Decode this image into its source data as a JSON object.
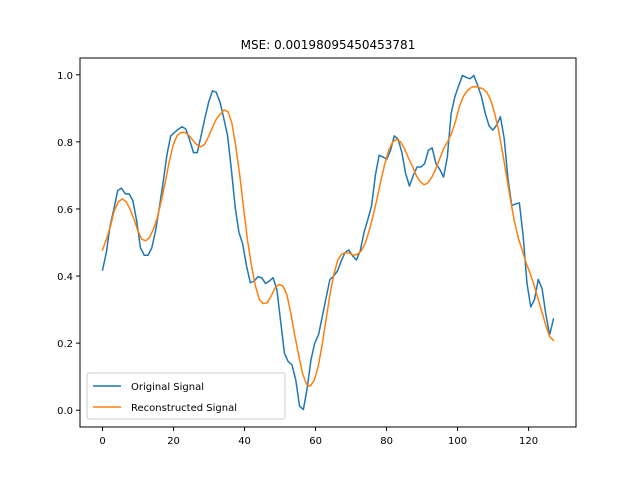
{
  "chart_data": {
    "type": "line",
    "title": "MSE: 0.00198095450453781",
    "xlabel": "",
    "ylabel": "",
    "xlim": [
      -6.35,
      133.35
    ],
    "ylim": [
      -0.05,
      1.05
    ],
    "xticks": [
      0,
      20,
      40,
      60,
      80,
      100,
      120
    ],
    "yticks": [
      0.0,
      0.2,
      0.4,
      0.6,
      0.8,
      1.0
    ],
    "ytick_labels": [
      "0.0",
      "0.2",
      "0.4",
      "0.6",
      "0.8",
      "1.0"
    ],
    "grid": false,
    "legend_position": "lower-left",
    "series": [
      {
        "name": "Original Signal",
        "color": "#1f77b4",
        "points": [
          [
            0,
            0.418
          ],
          [
            1,
            0.47
          ],
          [
            2,
            0.55
          ],
          [
            3,
            0.6
          ],
          [
            4,
            0.655
          ],
          [
            5,
            0.662
          ],
          [
            6,
            0.645
          ],
          [
            7,
            0.645
          ],
          [
            8,
            0.625
          ],
          [
            9,
            0.565
          ],
          [
            10,
            0.484
          ],
          [
            11,
            0.462
          ],
          [
            12,
            0.462
          ],
          [
            13,
            0.484
          ],
          [
            14,
            0.535
          ],
          [
            15,
            0.605
          ],
          [
            16,
            0.68
          ],
          [
            17,
            0.762
          ],
          [
            18,
            0.818
          ],
          [
            19,
            0.828
          ],
          [
            20,
            0.838
          ],
          [
            21,
            0.845
          ],
          [
            22,
            0.838
          ],
          [
            23,
            0.805
          ],
          [
            24,
            0.768
          ],
          [
            25,
            0.768
          ],
          [
            26,
            0.818
          ],
          [
            27,
            0.87
          ],
          [
            28,
            0.918
          ],
          [
            29,
            0.952
          ],
          [
            30,
            0.948
          ],
          [
            31,
            0.918
          ],
          [
            32,
            0.87
          ],
          [
            33,
            0.818
          ],
          [
            34,
            0.718
          ],
          [
            35,
            0.605
          ],
          [
            36,
            0.53
          ],
          [
            37,
            0.495
          ],
          [
            38,
            0.43
          ],
          [
            39,
            0.38
          ],
          [
            40,
            0.385
          ],
          [
            41,
            0.398
          ],
          [
            42,
            0.395
          ],
          [
            43,
            0.378
          ],
          [
            44,
            0.385
          ],
          [
            45,
            0.395
          ],
          [
            46,
            0.36
          ],
          [
            47,
            0.265
          ],
          [
            48,
            0.17
          ],
          [
            49,
            0.145
          ],
          [
            50,
            0.135
          ],
          [
            51,
            0.09
          ],
          [
            52,
            0.012
          ],
          [
            53,
            0.002
          ],
          [
            54,
            0.065
          ],
          [
            55,
            0.15
          ],
          [
            56,
            0.2
          ],
          [
            57,
            0.225
          ],
          [
            58,
            0.28
          ],
          [
            59,
            0.335
          ],
          [
            60,
            0.39
          ],
          [
            61,
            0.4
          ],
          [
            62,
            0.415
          ],
          [
            63,
            0.445
          ],
          [
            64,
            0.47
          ],
          [
            65,
            0.478
          ],
          [
            66,
            0.46
          ],
          [
            67,
            0.448
          ],
          [
            68,
            0.475
          ],
          [
            69,
            0.53
          ],
          [
            70,
            0.568
          ],
          [
            71,
            0.61
          ],
          [
            72,
            0.7
          ],
          [
            73,
            0.76
          ],
          [
            74,
            0.755
          ],
          [
            75,
            0.748
          ],
          [
            76,
            0.775
          ],
          [
            77,
            0.818
          ],
          [
            78,
            0.808
          ],
          [
            79,
            0.768
          ],
          [
            80,
            0.705
          ],
          [
            81,
            0.668
          ],
          [
            82,
            0.7
          ],
          [
            83,
            0.725
          ],
          [
            84,
            0.725
          ],
          [
            85,
            0.735
          ],
          [
            86,
            0.775
          ],
          [
            87,
            0.782
          ],
          [
            88,
            0.735
          ],
          [
            89,
            0.718
          ],
          [
            90,
            0.695
          ],
          [
            91,
            0.755
          ],
          [
            92,
            0.885
          ],
          [
            93,
            0.935
          ],
          [
            94,
            0.968
          ],
          [
            95,
            0.998
          ],
          [
            96,
            0.992
          ],
          [
            97,
            0.988
          ],
          [
            98,
            0.998
          ],
          [
            99,
            0.968
          ],
          [
            100,
            0.935
          ],
          [
            101,
            0.885
          ],
          [
            102,
            0.848
          ],
          [
            103,
            0.835
          ],
          [
            104,
            0.85
          ],
          [
            105,
            0.875
          ],
          [
            106,
            0.81
          ],
          [
            107,
            0.69
          ],
          [
            108,
            0.61
          ],
          [
            109,
            0.615
          ],
          [
            110,
            0.618
          ],
          [
            111,
            0.52
          ],
          [
            112,
            0.38
          ],
          [
            113,
            0.308
          ],
          [
            114,
            0.33
          ],
          [
            115,
            0.39
          ],
          [
            116,
            0.362
          ],
          [
            117,
            0.285
          ],
          [
            118,
            0.225
          ],
          [
            119,
            0.272
          ]
        ]
      },
      {
        "name": "Reconstructed Signal",
        "color": "#ff7f0e",
        "points": [
          [
            0,
            0.478
          ],
          [
            1,
            0.51
          ],
          [
            2,
            0.548
          ],
          [
            3,
            0.595
          ],
          [
            4,
            0.62
          ],
          [
            5,
            0.63
          ],
          [
            6,
            0.622
          ],
          [
            7,
            0.6
          ],
          [
            8,
            0.57
          ],
          [
            9,
            0.535
          ],
          [
            10,
            0.51
          ],
          [
            11,
            0.505
          ],
          [
            12,
            0.515
          ],
          [
            13,
            0.54
          ],
          [
            14,
            0.575
          ],
          [
            15,
            0.625
          ],
          [
            16,
            0.68
          ],
          [
            17,
            0.74
          ],
          [
            18,
            0.79
          ],
          [
            19,
            0.818
          ],
          [
            20,
            0.828
          ],
          [
            21,
            0.828
          ],
          [
            22,
            0.82
          ],
          [
            23,
            0.805
          ],
          [
            24,
            0.792
          ],
          [
            25,
            0.785
          ],
          [
            26,
            0.792
          ],
          [
            27,
            0.815
          ],
          [
            28,
            0.842
          ],
          [
            29,
            0.868
          ],
          [
            30,
            0.882
          ],
          [
            31,
            0.895
          ],
          [
            32,
            0.89
          ],
          [
            33,
            0.855
          ],
          [
            34,
            0.785
          ],
          [
            35,
            0.7
          ],
          [
            36,
            0.6
          ],
          [
            37,
            0.505
          ],
          [
            38,
            0.43
          ],
          [
            39,
            0.37
          ],
          [
            40,
            0.33
          ],
          [
            41,
            0.318
          ],
          [
            42,
            0.32
          ],
          [
            43,
            0.34
          ],
          [
            44,
            0.365
          ],
          [
            45,
            0.375
          ],
          [
            46,
            0.37
          ],
          [
            47,
            0.345
          ],
          [
            48,
            0.29
          ],
          [
            49,
            0.225
          ],
          [
            50,
            0.165
          ],
          [
            51,
            0.11
          ],
          [
            52,
            0.078
          ],
          [
            53,
            0.072
          ],
          [
            54,
            0.09
          ],
          [
            55,
            0.13
          ],
          [
            56,
            0.195
          ],
          [
            57,
            0.27
          ],
          [
            58,
            0.345
          ],
          [
            59,
            0.405
          ],
          [
            60,
            0.448
          ],
          [
            61,
            0.465
          ],
          [
            62,
            0.47
          ],
          [
            63,
            0.468
          ],
          [
            64,
            0.462
          ],
          [
            65,
            0.465
          ],
          [
            66,
            0.475
          ],
          [
            67,
            0.498
          ],
          [
            68,
            0.535
          ],
          [
            69,
            0.58
          ],
          [
            70,
            0.63
          ],
          [
            71,
            0.685
          ],
          [
            72,
            0.735
          ],
          [
            73,
            0.775
          ],
          [
            74,
            0.8
          ],
          [
            75,
            0.808
          ],
          [
            76,
            0.8
          ],
          [
            77,
            0.78
          ],
          [
            78,
            0.752
          ],
          [
            79,
            0.728
          ],
          [
            80,
            0.7
          ],
          [
            81,
            0.682
          ],
          [
            82,
            0.672
          ],
          [
            83,
            0.678
          ],
          [
            84,
            0.695
          ],
          [
            85,
            0.72
          ],
          [
            86,
            0.75
          ],
          [
            87,
            0.78
          ],
          [
            88,
            0.8
          ],
          [
            89,
            0.825
          ],
          [
            90,
            0.86
          ],
          [
            91,
            0.905
          ],
          [
            92,
            0.935
          ],
          [
            93,
            0.952
          ],
          [
            94,
            0.962
          ],
          [
            95,
            0.965
          ],
          [
            96,
            0.962
          ],
          [
            97,
            0.958
          ],
          [
            98,
            0.948
          ],
          [
            99,
            0.925
          ],
          [
            100,
            0.885
          ],
          [
            101,
            0.835
          ],
          [
            102,
            0.77
          ],
          [
            103,
            0.7
          ],
          [
            104,
            0.63
          ],
          [
            105,
            0.565
          ],
          [
            106,
            0.515
          ],
          [
            107,
            0.478
          ],
          [
            108,
            0.44
          ],
          [
            109,
            0.41
          ],
          [
            110,
            0.375
          ],
          [
            111,
            0.335
          ],
          [
            112,
            0.295
          ],
          [
            113,
            0.255
          ],
          [
            114,
            0.22
          ],
          [
            115,
            0.208
          ]
        ]
      }
    ]
  }
}
